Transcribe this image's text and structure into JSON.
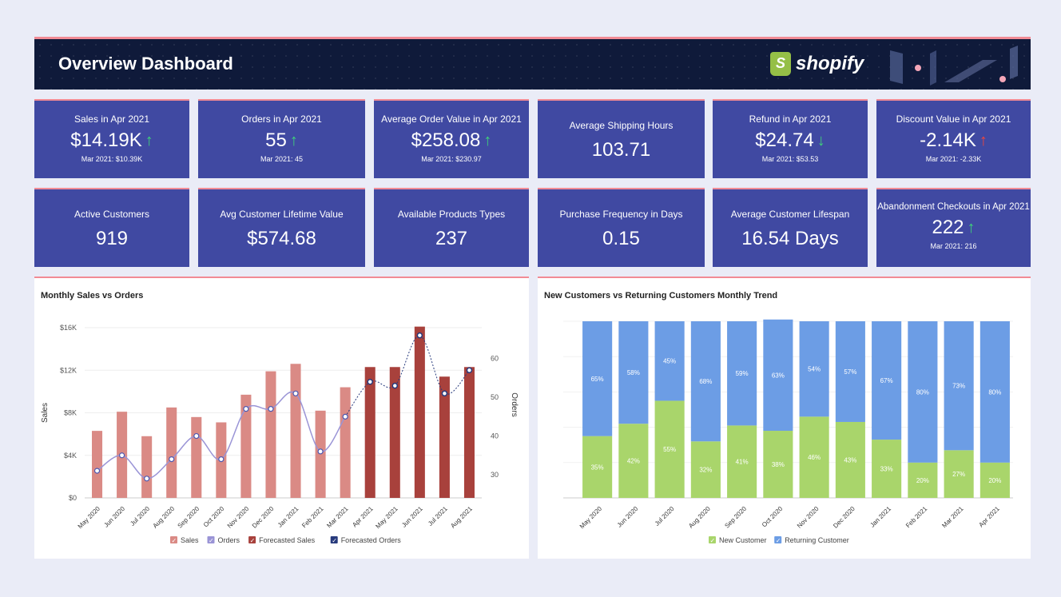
{
  "header": {
    "title": "Overview Dashboard",
    "brand": "shopify"
  },
  "kpi_row1": [
    {
      "label": "Sales in Apr 2021",
      "value": "$14.19K",
      "trend": "up",
      "sub": "Mar 2021: $10.39K"
    },
    {
      "label": "Orders in Apr 2021",
      "value": "55",
      "trend": "up",
      "sub": "Mar 2021: 45"
    },
    {
      "label": "Average Order Value in Apr 2021",
      "value": "$258.08",
      "trend": "up",
      "sub": "Mar 2021: $230.97"
    },
    {
      "label": "Average Shipping Hours",
      "value": "103.71"
    },
    {
      "label": "Refund in Apr 2021",
      "value": "$24.74",
      "trend": "down",
      "sub": "Mar 2021: $53.53"
    },
    {
      "label": "Discount Value in Apr 2021",
      "value": "-2.14K",
      "trend": "up-bad",
      "sub": "Mar 2021: -2.33K"
    }
  ],
  "kpi_row2": [
    {
      "label": "Active Customers",
      "value": "919"
    },
    {
      "label": "Avg Customer Lifetime Value",
      "value": "$574.68"
    },
    {
      "label": "Available Products Types",
      "value": "237"
    },
    {
      "label": "Purchase Frequency in Days",
      "value": "0.15"
    },
    {
      "label": "Average Customer Lifespan",
      "value": "16.54 Days"
    },
    {
      "label": "Abandonment Checkouts in Apr 2021",
      "value": "222",
      "trend": "up",
      "sub": "Mar 2021: 216"
    }
  ],
  "colors": {
    "sales": "#da8a85",
    "forecast_sales": "#a8413c",
    "orders": "#9a94d6",
    "forecast_orders": "#273a7c",
    "new_customer": "#a9d56b",
    "returning_customer": "#6c9de5"
  },
  "chart_data": [
    {
      "type": "bar",
      "title": "Monthly Sales vs Orders",
      "xlabel": "",
      "ylabel": "Sales",
      "y2label": "Orders",
      "categories": [
        "May 2020",
        "Jun 2020",
        "Jul 2020",
        "Aug 2020",
        "Sep 2020",
        "Oct 2020",
        "Nov 2020",
        "Dec 2020",
        "Jan 2021",
        "Feb 2021",
        "Mar 2021",
        "Apr 2021",
        "May 2021",
        "Jun 2021",
        "Jul 2021",
        "Aug 2021"
      ],
      "ylim": [
        0,
        16000
      ],
      "yticks": [
        "$0",
        "$4K",
        "$8K",
        "$12K",
        "$16K"
      ],
      "y2lim": [
        24,
        68
      ],
      "y2ticks": [
        "30",
        "40",
        "50",
        "60"
      ],
      "series": [
        {
          "name": "Sales",
          "kind": "bar",
          "values": [
            6300,
            8100,
            5800,
            8500,
            7600,
            7100,
            9700,
            11900,
            12600,
            8200,
            10400,
            null,
            null,
            null,
            null,
            null
          ]
        },
        {
          "name": "Orders",
          "kind": "line",
          "values": [
            31,
            35,
            29,
            34,
            40,
            34,
            47,
            47,
            51,
            36,
            45,
            null,
            null,
            null,
            null,
            null
          ]
        },
        {
          "name": "Forecasted Sales",
          "kind": "bar",
          "values": [
            null,
            null,
            null,
            null,
            null,
            null,
            null,
            null,
            null,
            null,
            null,
            12300,
            12300,
            16100,
            11400,
            12300
          ]
        },
        {
          "name": "Forecasted Orders",
          "kind": "line",
          "values": [
            null,
            null,
            null,
            null,
            null,
            null,
            null,
            null,
            null,
            null,
            45,
            54,
            53,
            66,
            51,
            57
          ]
        }
      ],
      "legend": "bottom"
    },
    {
      "type": "bar",
      "stacked": true,
      "title": "New Customers vs Returning Customers Monthly Trend",
      "categories": [
        "May 2020",
        "Jun 2020",
        "Jul 2020",
        "Aug 2020",
        "Sep 2020",
        "Oct 2020",
        "Nov 2020",
        "Dec 2020",
        "Jan 2021",
        "Feb 2021",
        "Mar 2021",
        "Apr 2021"
      ],
      "ylim": [
        0,
        100
      ],
      "series": [
        {
          "name": "New Customer",
          "values": [
            35,
            42,
            55,
            32,
            41,
            38,
            46,
            43,
            33,
            20,
            27,
            20
          ],
          "labels": [
            "35%",
            "42%",
            "55%",
            "32%",
            "41%",
            "38%",
            "46%",
            "43%",
            "33%",
            "20%",
            "27%",
            "20%"
          ]
        },
        {
          "name": "Returning Customer",
          "values": [
            65,
            58,
            45,
            68,
            59,
            63,
            54,
            57,
            67,
            80,
            73,
            80
          ],
          "labels": [
            "65%",
            "58%",
            "45%",
            "68%",
            "59%",
            "63%",
            "54%",
            "57%",
            "67%",
            "80%",
            "73%",
            "80%"
          ]
        }
      ],
      "legend": "bottom"
    }
  ]
}
